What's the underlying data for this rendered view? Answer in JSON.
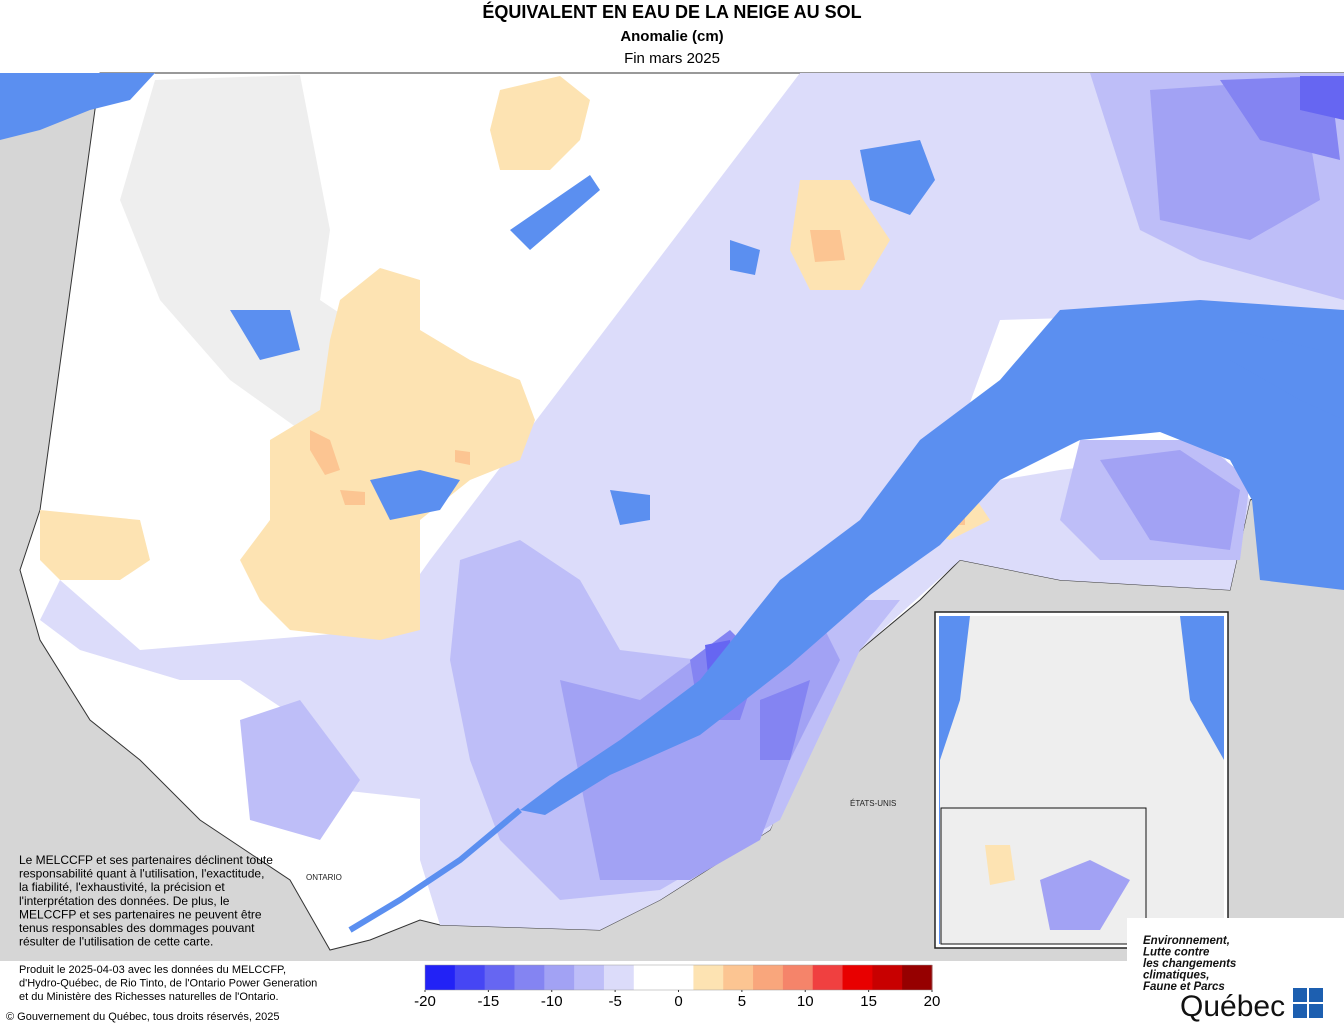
{
  "header": {
    "title": "ÉQUIVALENT EN EAU DE LA NEIGE AU SOL",
    "subtitle": "Anomalie (cm)",
    "period": "Fin mars 2025"
  },
  "map_labels": {
    "ontario": "ONTARIO",
    "usa": "ÉTATS-UNIS"
  },
  "disclaimer": [
    "Le MELCCFP et ses partenaires déclinent toute",
    "responsabilité quant à l'utilisation, l'exactitude,",
    "la fiabilité, l'exhaustivité, la précision et",
    "l'interprétation des données. De plus, le",
    "MELCCFP et ses partenaires ne peuvent être",
    "tenus responsables des dommages pouvant",
    "résulter de l'utilisation de cette carte."
  ],
  "credits": [
    "Produit le 2025-04-03 avec les données du MELCCFP,",
    "d'Hydro-Québec, de Rio Tinto, de l'Ontario Power Generation",
    "et du Ministère des Richesses naturelles de l'Ontario.",
    "© Gouvernement du Québec, tous droits réservés, 2025"
  ],
  "legend": {
    "range": [
      -20,
      20
    ],
    "colors": [
      "#2222f6",
      "#4646f4",
      "#6666f2",
      "#8484f2",
      "#a2a2f4",
      "#bebef8",
      "#dcdcfa",
      "#ffffff",
      "#ffffff",
      "#fde3b2",
      "#fcc592",
      "#f9a67c",
      "#f5846a",
      "#f04040",
      "#e80000",
      "#c80000",
      "#960000"
    ],
    "ticks": [
      -20,
      -15,
      -10,
      -5,
      0,
      5,
      10,
      15,
      20
    ]
  },
  "logo": {
    "ministry": [
      "Environnement,",
      "Lutte contre",
      "les changements",
      "climatiques,",
      "Faune et Parcs"
    ],
    "name": "Québec"
  }
}
